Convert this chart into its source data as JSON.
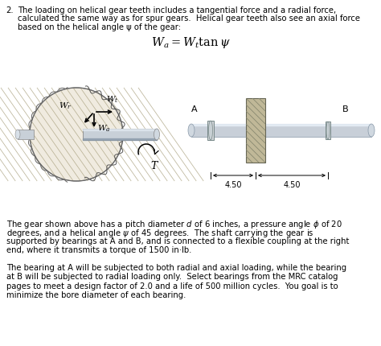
{
  "background_color": "#ffffff",
  "question_number": "2.",
  "intro_line1": "The loading on helical gear teeth includes a tangential force and a radial force,",
  "intro_line2": "calculated the same way as for spur gears.  Helical gear teeth also see an axial force",
  "intro_line3": "based on the helical angle ψ of the gear:",
  "formula_text": "$W_a = W_t \\tan \\psi$",
  "body_text1_lines": [
    "The gear shown above has a pitch diameter $d$ of 6 inches, a pressure angle $\\phi$ of 20",
    "degrees, and a helical angle $\\psi$ of 45 degrees.  The shaft carrying the gear is",
    "supported by bearings at A and B, and is connected to a flexible coupling at the right",
    "end, where it transmits a torque of 1500 in·lb."
  ],
  "body_text2_lines": [
    "The bearing at A will be subjected to both radial and axial loading, while the bearing",
    "at B will be subjected to radial loading only.  Select bearings from the MRC catalog",
    "pages to meet a design factor of 2.0 and a life of 500 million cycles.  You goal is to",
    "minimize the bore diameter of each bearing."
  ],
  "dim_left": "4.50",
  "dim_right": "4.50",
  "label_A": "A",
  "label_B": "B",
  "gear_fill": "#f0ebe0",
  "gear_edge": "#888888",
  "shaft_fill": "#c8d0d8",
  "shaft_dark": "#aab0b8",
  "gear_hatch_fill": "#c8c0a8",
  "gear_hatch_line": "#888880"
}
